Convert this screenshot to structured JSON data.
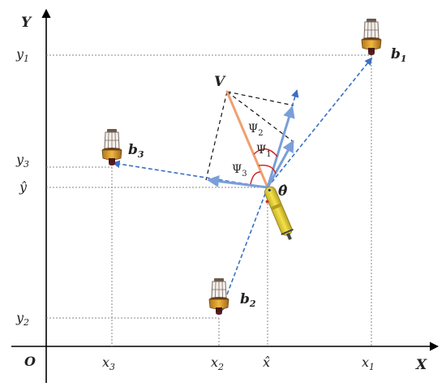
{
  "axes": {
    "origin": "O",
    "x_axis": "X",
    "y_axis": "Y",
    "x_ticks": [
      "x",
      "x",
      "x̂",
      "x"
    ],
    "x_tick_subs": [
      "3",
      "2",
      "",
      "1"
    ],
    "y_ticks": [
      "y",
      "y",
      "ŷ",
      "y"
    ],
    "y_tick_subs": [
      "1",
      "3",
      "",
      "2"
    ]
  },
  "beacons": [
    {
      "label": "b",
      "sub": "1"
    },
    {
      "label": "b",
      "sub": "3"
    },
    {
      "label": "b",
      "sub": "2"
    }
  ],
  "vehicle": {
    "label": "θ̂",
    "velocity_label": "V"
  },
  "angles": [
    {
      "label": "Ψ",
      "sub": "2"
    },
    {
      "label": "Ψ",
      "sub": "1"
    },
    {
      "label": "Ψ",
      "sub": "3"
    }
  ],
  "colors": {
    "axis": "#000000",
    "guide": "#8a8a8a",
    "bearing": "#3b6fc4",
    "projection": "#7a9fd8",
    "velocity": "#f0a070",
    "angle_arc": "#d21c1c",
    "buoy_body": "#e0a020",
    "vehicle_body": "#e6d13a"
  }
}
